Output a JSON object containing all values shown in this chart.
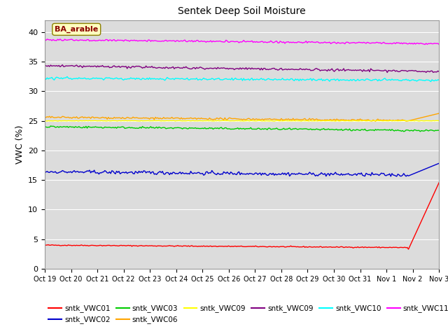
{
  "title": "Sentek Deep Soil Moisture",
  "ylabel": "VWC (%)",
  "ylim": [
    0,
    42
  ],
  "yticks": [
    0,
    5,
    10,
    15,
    20,
    25,
    30,
    35,
    40
  ],
  "annotation_text": "BA_arable",
  "annotation_color": "#8B0000",
  "annotation_bg": "#FFFFC0",
  "annotation_border": "#8B8000",
  "bg_color": "#DCDCDC",
  "series": {
    "sntk_VWC01": {
      "color": "#FF0000",
      "label": "sntk_VWC01"
    },
    "sntk_VWC02": {
      "color": "#0000CC",
      "label": "sntk_VWC02"
    },
    "sntk_VWC03": {
      "color": "#00CC00",
      "label": "sntk_VWC03"
    },
    "sntk_VWC06": {
      "color": "#FFA500",
      "label": "sntk_VWC06"
    },
    "sntk_VWC09_yellow": {
      "color": "#FFFF00",
      "label": "sntk_VWC09"
    },
    "sntk_VWC09_purple": {
      "color": "#800080",
      "label": "sntk_VWC09"
    },
    "sntk_VWC10": {
      "color": "#00FFFF",
      "label": "sntk_VWC10"
    },
    "sntk_VWC11": {
      "color": "#FF00FF",
      "label": "sntk_VWC11"
    }
  },
  "legend_order": [
    "sntk_VWC01",
    "sntk_VWC02",
    "sntk_VWC03",
    "sntk_VWC06",
    "sntk_VWC09_yellow",
    "sntk_VWC09_purple",
    "sntk_VWC10",
    "sntk_VWC11"
  ],
  "date_labels": [
    "Oct 19",
    "Oct 20",
    "Oct 21",
    "Oct 22",
    "Oct 23",
    "Oct 24",
    "Oct 25",
    "Oct 26",
    "Oct 27",
    "Oct 28",
    "Oct 29",
    "Oct 30",
    "Oct 31",
    "Nov 1",
    "Nov 2",
    "Nov 3"
  ],
  "n_points": 336,
  "end_day": 15
}
